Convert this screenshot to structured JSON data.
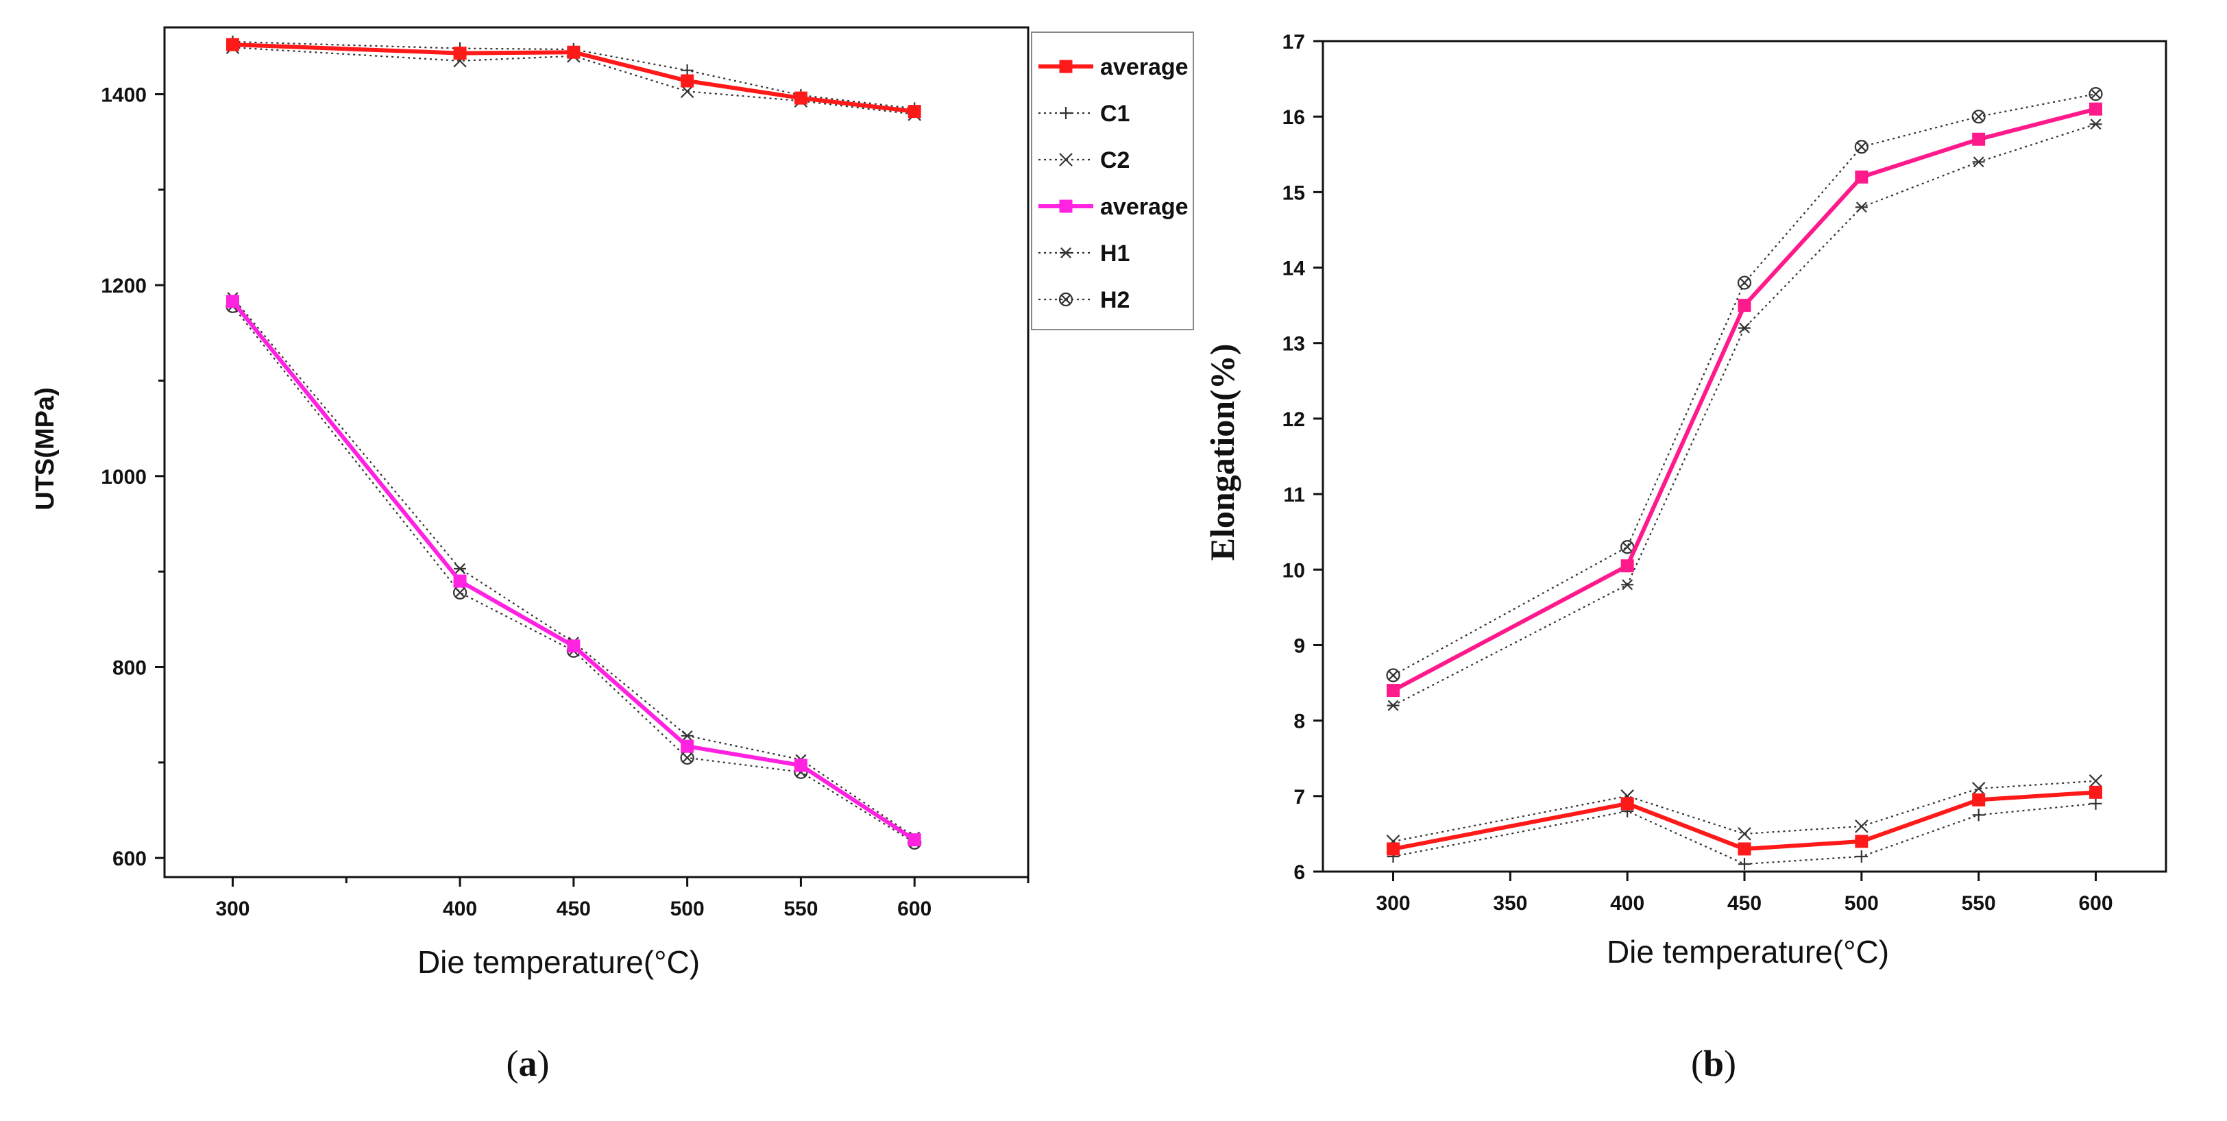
{
  "colors": {
    "red": "#ff1a1a",
    "magenta": "#ff22e0",
    "pink": "#ff1a8c",
    "dotted": "#333333",
    "axis": "#111111"
  },
  "chart_data": [
    {
      "type": "line",
      "panel": "a",
      "xlabel": "Die temperature(°C)",
      "ylabel": "UTS(MPa)",
      "xlim": [
        270,
        650
      ],
      "ylim": [
        580,
        1470
      ],
      "xticks": [
        300,
        400,
        450,
        500,
        550,
        600
      ],
      "xminor_ticks": [
        350,
        650
      ],
      "yticks": [
        600,
        800,
        1000,
        1200,
        1400
      ],
      "yminor_ticks": [
        700,
        900,
        1100,
        1300
      ],
      "x": [
        300,
        400,
        450,
        500,
        550,
        600
      ],
      "legend_position": "outside-right",
      "series": [
        {
          "name": "average",
          "values": [
            1452,
            1443,
            1444,
            1414,
            1396,
            1382
          ],
          "color": "#ff1a1a",
          "marker": "square",
          "line": "solid"
        },
        {
          "name": "C1",
          "values": [
            1455,
            1448,
            1447,
            1425,
            1399,
            1385
          ],
          "color": "#333333",
          "marker": "plus",
          "line": "dotted"
        },
        {
          "name": "C2",
          "values": [
            1449,
            1435,
            1440,
            1403,
            1393,
            1379
          ],
          "color": "#333333",
          "marker": "x",
          "line": "dotted"
        },
        {
          "name": "average",
          "values": [
            1183,
            890,
            822,
            717,
            697,
            619
          ],
          "color": "#ff22e0",
          "marker": "square",
          "line": "solid"
        },
        {
          "name": "H1",
          "values": [
            1187,
            903,
            826,
            728,
            703,
            622
          ],
          "color": "#333333",
          "marker": "asterisk",
          "line": "dotted"
        },
        {
          "name": "H2",
          "values": [
            1178,
            878,
            817,
            705,
            690,
            616
          ],
          "color": "#333333",
          "marker": "circle-x",
          "line": "dotted"
        }
      ],
      "caption": "a"
    },
    {
      "type": "line",
      "panel": "b",
      "xlabel": "Die temperature(°C)",
      "ylabel": "Elongation(%)",
      "xlim": [
        270,
        630
      ],
      "ylim": [
        6,
        17
      ],
      "xticks": [
        300,
        350,
        400,
        450,
        500,
        550,
        600
      ],
      "yticks": [
        6,
        7,
        8,
        9,
        10,
        11,
        12,
        13,
        14,
        15,
        16,
        17
      ],
      "x": [
        300,
        400,
        450,
        500,
        550,
        600
      ],
      "series": [
        {
          "values": [
            8.4,
            10.05,
            13.5,
            15.2,
            15.7,
            16.1
          ],
          "color": "#ff1a8c",
          "marker": "square",
          "line": "solid"
        },
        {
          "values": [
            8.2,
            9.8,
            13.2,
            14.8,
            15.4,
            15.9
          ],
          "color": "#333333",
          "marker": "asterisk",
          "line": "dotted"
        },
        {
          "values": [
            8.6,
            10.3,
            13.8,
            15.6,
            16.0,
            16.3
          ],
          "color": "#333333",
          "marker": "circle-x",
          "line": "dotted"
        },
        {
          "values": [
            6.3,
            6.9,
            6.3,
            6.4,
            6.95,
            7.05
          ],
          "color": "#ff1a1a",
          "marker": "square",
          "line": "solid"
        },
        {
          "values": [
            6.2,
            6.8,
            6.1,
            6.2,
            6.75,
            6.9
          ],
          "color": "#333333",
          "marker": "plus",
          "line": "dotted"
        },
        {
          "values": [
            6.4,
            7.0,
            6.5,
            6.6,
            7.1,
            7.2
          ],
          "color": "#333333",
          "marker": "x",
          "line": "dotted"
        }
      ],
      "caption": "b"
    }
  ],
  "captions": {
    "a": "a",
    "b": "b",
    "open": "(",
    "close": ")"
  }
}
